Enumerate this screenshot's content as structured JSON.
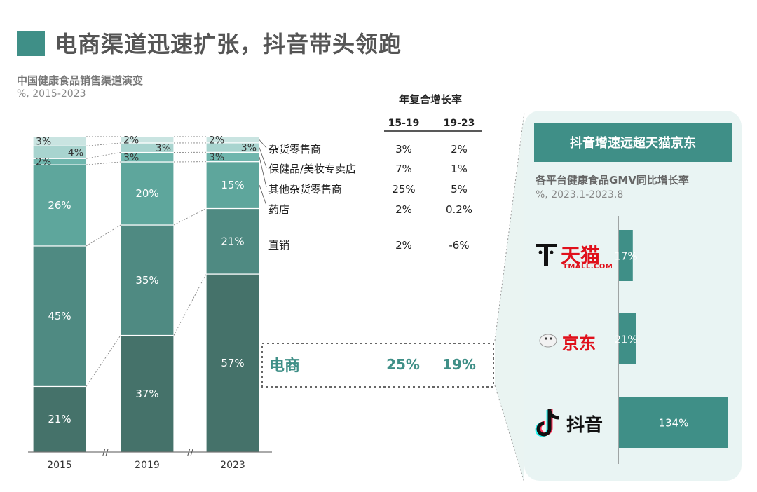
{
  "title": "电商渠道迅速扩张，抖音带头领跑",
  "subtitle": "中国健康食品销售渠道演变",
  "unit": "%, 2015-2023",
  "colors": {
    "accent": "#3f8f87",
    "ecommerce": "#45726a",
    "direct": "#4f8a82",
    "pharmacy": "#5ea69c",
    "other_grocery": "#6fb6ad",
    "beauty_store": "#a8d4cf",
    "grocery": "#c9e4e1"
  },
  "table": {
    "header": "年复合增长率",
    "col1": "15-19",
    "col2": "19-23",
    "rows": [
      {
        "channel": "杂货零售商",
        "c1": "3%",
        "c2": "2%"
      },
      {
        "channel": "保健品/美妆专卖店",
        "c1": "7%",
        "c2": "1%"
      },
      {
        "channel": "其他杂货零售商",
        "c1": "25%",
        "c2": "5%"
      },
      {
        "channel": "药店",
        "c1": "2%",
        "c2": "0.2%"
      },
      {
        "channel": "直销",
        "c1": "2%",
        "c2": "-6%"
      }
    ],
    "highlight": {
      "channel": "电商",
      "c1": "25%",
      "c2": "19%"
    }
  },
  "chart_data": [
    {
      "type": "bar",
      "stacked": true,
      "title": "中国健康食品销售渠道演变",
      "categories": [
        "2015",
        "2019",
        "2023"
      ],
      "series": [
        {
          "name": "电商",
          "values": [
            21,
            37,
            57
          ],
          "labels": [
            "21%",
            "37%",
            "57%"
          ]
        },
        {
          "name": "直销",
          "values": [
            45,
            35,
            21
          ],
          "labels": [
            "45%",
            "35%",
            "21%"
          ]
        },
        {
          "name": "药店",
          "values": [
            26,
            20,
            15
          ],
          "labels": [
            "26%",
            "20%",
            "15%"
          ]
        },
        {
          "name": "其他杂货零售商",
          "values": [
            2,
            3,
            3
          ],
          "labels": [
            "2%",
            "3%",
            "3%"
          ]
        },
        {
          "name": "保健品/美妆专卖店",
          "values": [
            4,
            3,
            3
          ],
          "labels": [
            "4%",
            "3%",
            "3%"
          ]
        },
        {
          "name": "杂货零售商",
          "values": [
            3,
            2,
            2
          ],
          "labels": [
            "3%",
            "2%",
            "2%"
          ]
        }
      ],
      "ylim": [
        0,
        100
      ]
    },
    {
      "type": "bar",
      "orientation": "horizontal",
      "title": "各平台健康食品GMV同比增长率",
      "unit": "%, 2023.1-2023.8",
      "categories": [
        "天猫",
        "京东",
        "抖音"
      ],
      "values": [
        17,
        21,
        134
      ],
      "labels": [
        "17%",
        "21%",
        "134%"
      ]
    }
  ],
  "panel": {
    "header": "抖音增速远超天猫京东",
    "title": "各平台健康食品GMV同比增长率",
    "unit": "%, 2023.1-2023.8",
    "logos": {
      "tmall_cn": "天猫",
      "tmall_en": "TMALL.COM",
      "jd_cn": "京东",
      "douyin_cn": "抖音"
    }
  }
}
